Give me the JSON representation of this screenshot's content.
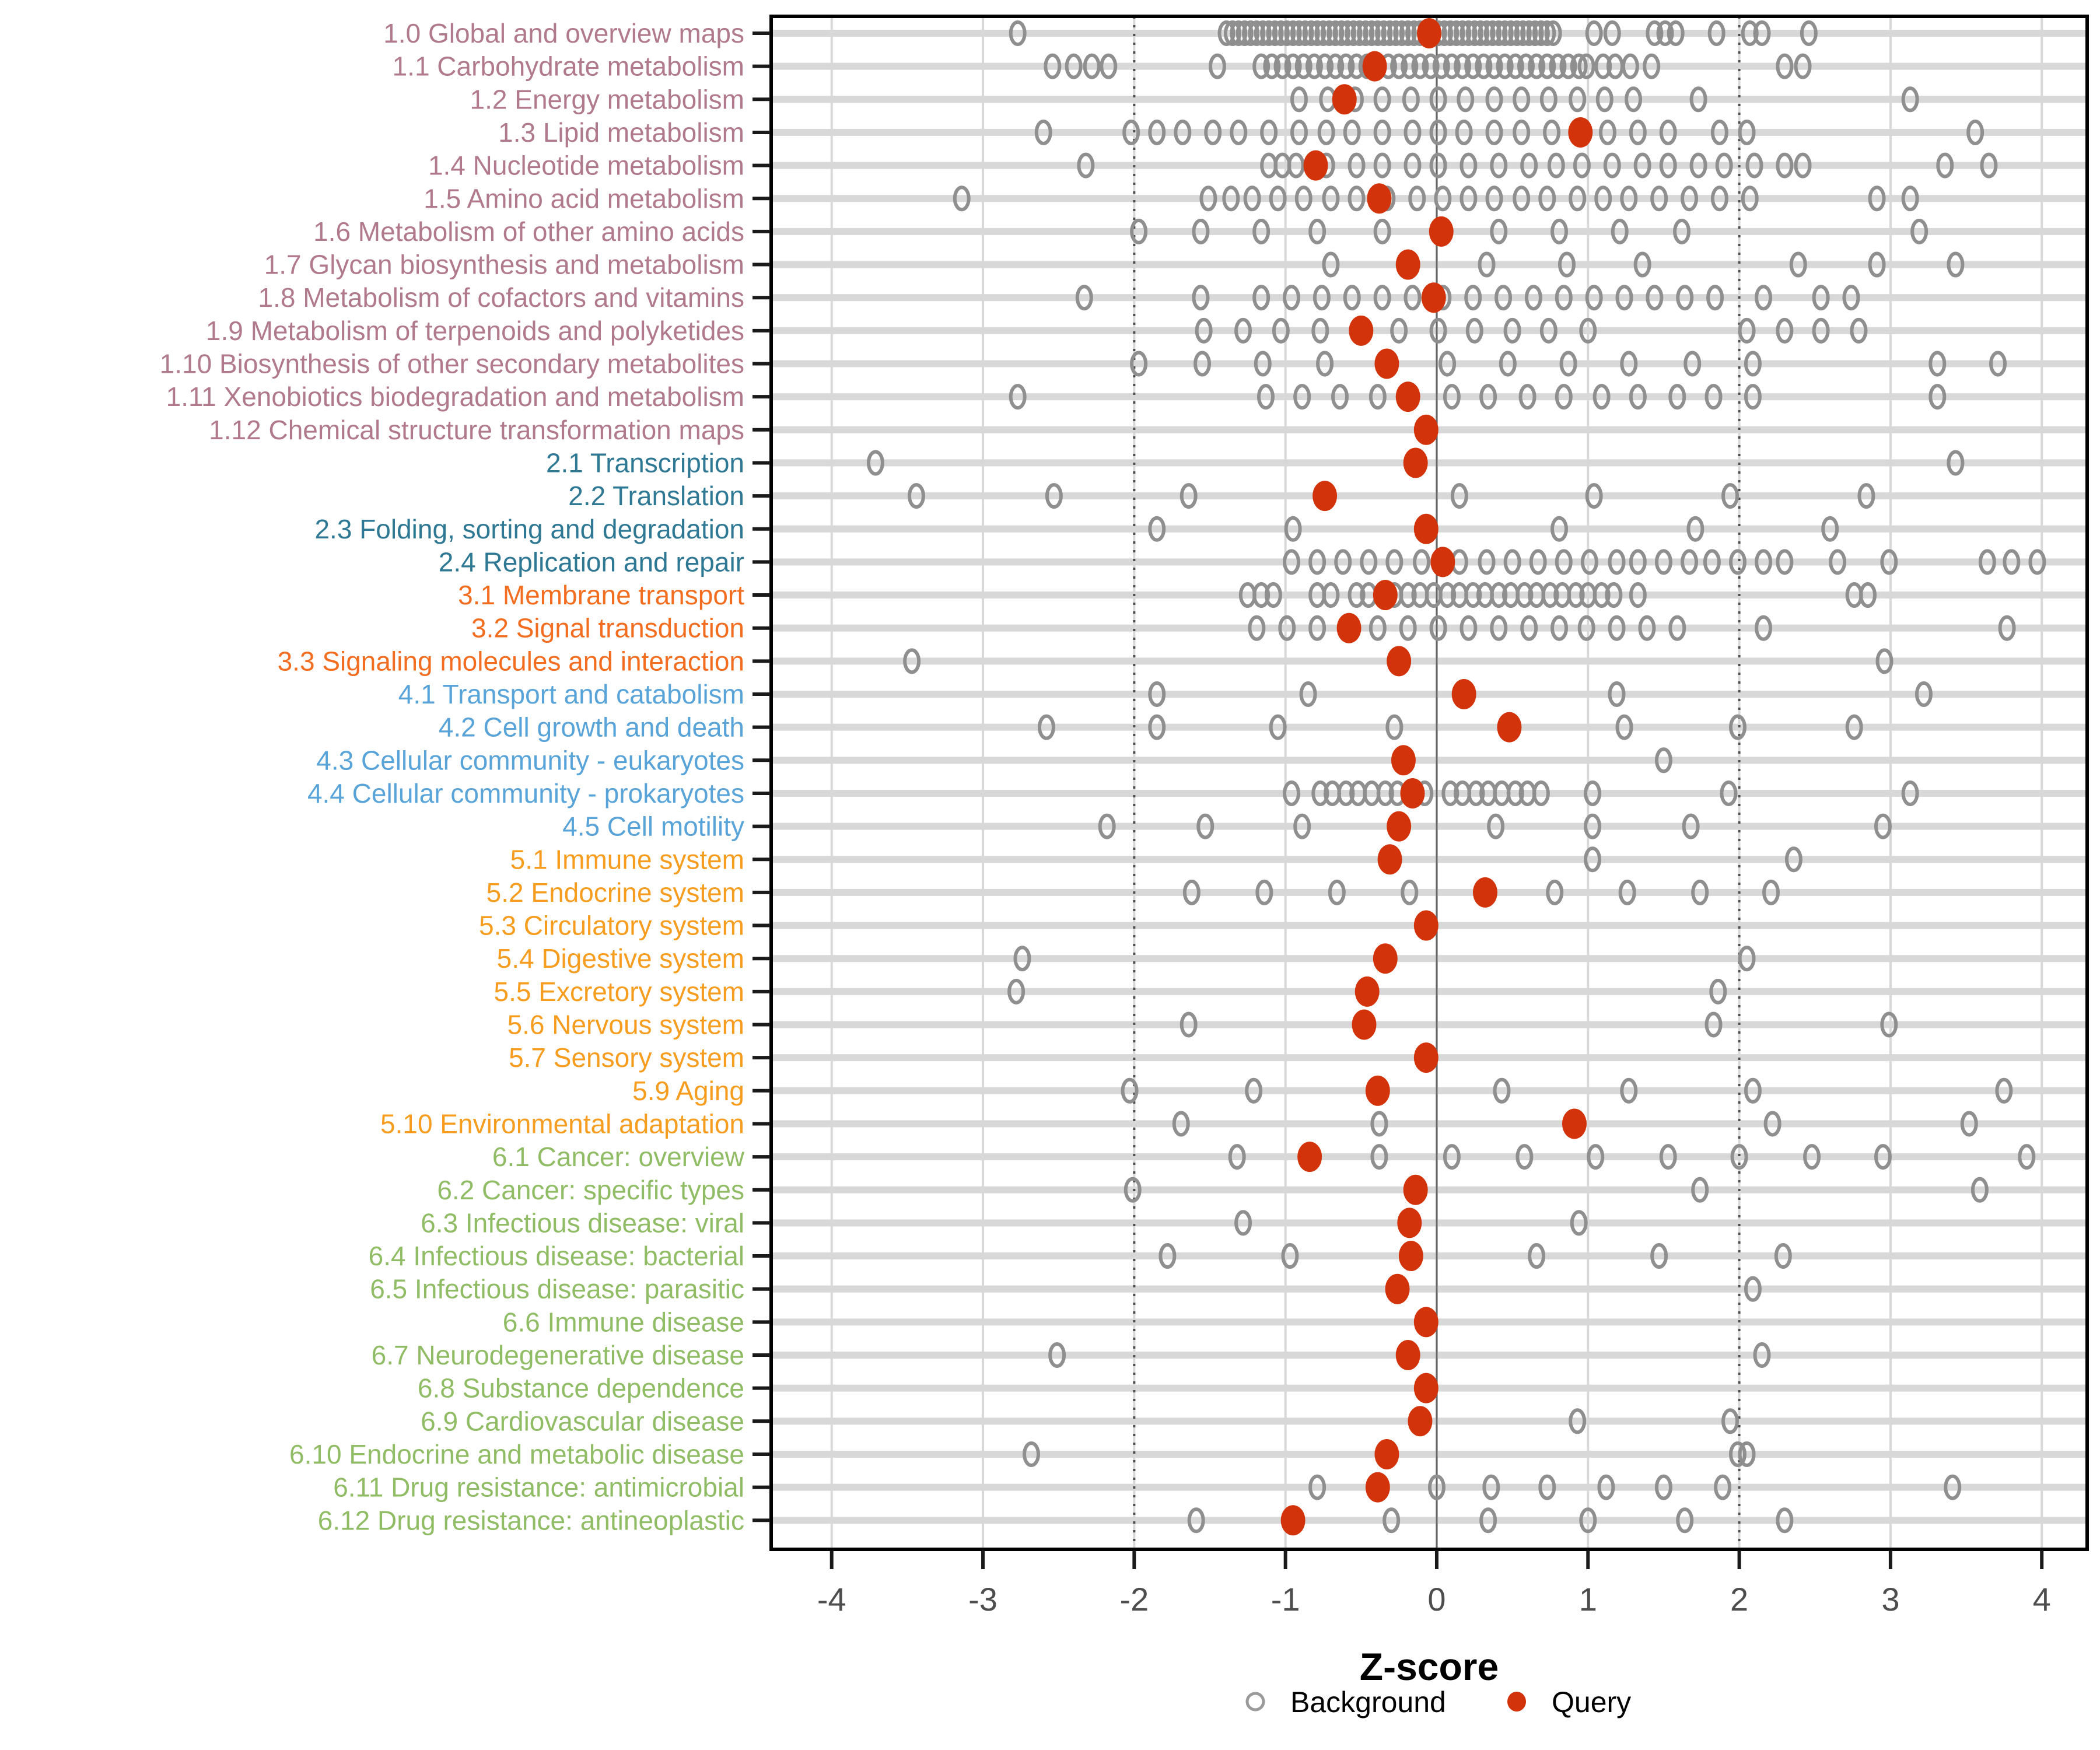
{
  "axis": {
    "xlabel": "Z-score",
    "ticks": [
      -4,
      -3,
      -2,
      -1,
      0,
      1,
      2,
      3,
      4
    ],
    "zero_line": 0,
    "dotted_lines": [
      -2,
      2
    ]
  },
  "legend": {
    "background_label": "Background",
    "query_label": "Query"
  },
  "colors": {
    "query": "#D2330A",
    "background_stroke": "#8F8F8F",
    "stripe": "#D8D8D8",
    "grid": "#D8D8D8",
    "zero_line": "#666666",
    "dotted_line": "#4D4D4D",
    "tick": "#1A1A1A",
    "groups": {
      "1": "#B0798C",
      "2": "#2E7894",
      "3": "#F26D1F",
      "4": "#58A3D8",
      "5": "#F69D1F",
      "6": "#8FBC64"
    }
  },
  "chart_data": {
    "type": "scatter",
    "title": "",
    "xlabel": "Z-score",
    "ylabel": "",
    "xlim": [
      -4.4,
      4.3
    ],
    "grid": true,
    "legend_position": "bottom",
    "series_names": [
      "Background",
      "Query"
    ],
    "categories": [
      {
        "label": "1.0 Global and overview maps",
        "group": "1",
        "query": -0.05,
        "background": [
          -2.77,
          -1.39,
          -1.35,
          -1.31,
          -1.27,
          -1.23,
          -1.19,
          -1.15,
          -1.11,
          -1.07,
          -1.03,
          -0.99,
          -0.95,
          -0.91,
          -0.87,
          -0.83,
          -0.79,
          -0.75,
          -0.71,
          -0.67,
          -0.63,
          -0.59,
          -0.55,
          -0.51,
          -0.47,
          -0.43,
          -0.39,
          -0.35,
          -0.31,
          -0.27,
          -0.23,
          -0.19,
          -0.15,
          -0.11,
          -0.07,
          -0.03,
          0.01,
          0.05,
          0.09,
          0.13,
          0.17,
          0.21,
          0.25,
          0.29,
          0.33,
          0.37,
          0.41,
          0.45,
          0.49,
          0.53,
          0.57,
          0.61,
          0.65,
          0.69,
          0.73,
          0.77,
          1.04,
          1.16,
          1.44,
          1.51,
          1.58,
          1.85,
          2.07,
          2.15,
          2.46
        ]
      },
      {
        "label": "1.1 Carbohydrate metabolism",
        "group": "1",
        "query": -0.41,
        "background": [
          -2.54,
          -2.4,
          -2.28,
          -2.17,
          -1.45,
          -1.16,
          -1.09,
          -1.02,
          -0.95,
          -0.88,
          -0.81,
          -0.74,
          -0.67,
          -0.6,
          -0.53,
          -0.46,
          -0.39,
          -0.32,
          -0.25,
          -0.18,
          -0.11,
          -0.04,
          0.03,
          0.1,
          0.17,
          0.24,
          0.31,
          0.38,
          0.45,
          0.52,
          0.59,
          0.66,
          0.73,
          0.8,
          0.87,
          0.94,
          0.99,
          1.1,
          1.18,
          1.28,
          1.42,
          2.3,
          2.42
        ]
      },
      {
        "label": "1.2 Energy metabolism",
        "group": "1",
        "query": -0.61,
        "background": [
          -0.91,
          -0.72,
          -0.54,
          -0.36,
          -0.17,
          0.01,
          0.19,
          0.38,
          0.56,
          0.74,
          0.93,
          1.11,
          1.3,
          1.73,
          3.13
        ]
      },
      {
        "label": "1.3 Lipid metabolism",
        "group": "1",
        "query": 0.95,
        "background": [
          -2.6,
          -2.02,
          -1.85,
          -1.68,
          -1.48,
          -1.31,
          -1.11,
          -0.91,
          -0.73,
          -0.56,
          -0.36,
          -0.16,
          0.01,
          0.18,
          0.38,
          0.56,
          0.76,
          1.13,
          1.33,
          1.53,
          1.87,
          2.05,
          3.56
        ]
      },
      {
        "label": "1.4 Nucleotide metabolism",
        "group": "1",
        "query": -0.8,
        "background": [
          -2.32,
          -1.11,
          -1.02,
          -0.93,
          -0.73,
          -0.53,
          -0.36,
          -0.16,
          0.01,
          0.21,
          0.41,
          0.61,
          0.79,
          0.96,
          1.16,
          1.36,
          1.53,
          1.73,
          1.9,
          2.1,
          2.3,
          2.42,
          3.36,
          3.65
        ]
      },
      {
        "label": "1.5 Amino acid metabolism",
        "group": "1",
        "query": -0.38,
        "background": [
          -3.14,
          -1.51,
          -1.36,
          -1.22,
          -1.05,
          -0.88,
          -0.7,
          -0.53,
          -0.33,
          -0.13,
          0.04,
          0.21,
          0.38,
          0.56,
          0.73,
          0.93,
          1.1,
          1.27,
          1.47,
          1.67,
          1.87,
          2.07,
          2.91,
          3.13
        ]
      },
      {
        "label": "1.6 Metabolism of other amino acids",
        "group": "1",
        "query": 0.03,
        "background": [
          -1.97,
          -1.56,
          -1.16,
          -0.79,
          -0.36,
          0.41,
          0.81,
          1.21,
          1.62,
          3.19
        ]
      },
      {
        "label": "1.7 Glycan biosynthesis and metabolism",
        "group": "1",
        "query": -0.19,
        "background": [
          -0.7,
          0.33,
          0.86,
          1.36,
          2.39,
          2.91,
          3.43
        ]
      },
      {
        "label": "1.8 Metabolism of cofactors and vitamins",
        "group": "1",
        "query": -0.02,
        "background": [
          -2.33,
          -1.56,
          -1.16,
          -0.96,
          -0.76,
          -0.56,
          -0.36,
          -0.16,
          0.04,
          0.24,
          0.44,
          0.64,
          0.84,
          1.04,
          1.24,
          1.44,
          1.64,
          1.84,
          2.16,
          2.54,
          2.74
        ]
      },
      {
        "label": "1.9 Metabolism of terpenoids and polyketides",
        "group": "1",
        "query": -0.5,
        "background": [
          -1.54,
          -1.28,
          -1.03,
          -0.77,
          -0.25,
          0.01,
          0.25,
          0.5,
          0.74,
          1.0,
          2.05,
          2.3,
          2.54,
          2.79
        ]
      },
      {
        "label": "1.10 Biosynthesis of other secondary metabolites",
        "group": "1",
        "query": -0.33,
        "background": [
          -1.97,
          -1.55,
          -1.15,
          -0.74,
          0.07,
          0.47,
          0.87,
          1.27,
          1.69,
          2.09,
          3.31,
          3.71
        ]
      },
      {
        "label": "1.11 Xenobiotics biodegradation and metabolism",
        "group": "1",
        "query": -0.19,
        "background": [
          -2.77,
          -1.13,
          -0.89,
          -0.64,
          -0.39,
          0.1,
          0.34,
          0.6,
          0.84,
          1.09,
          1.33,
          1.59,
          1.83,
          2.09,
          3.31
        ]
      },
      {
        "label": "1.12 Chemical structure transformation maps",
        "group": "1",
        "query": -0.07,
        "background": []
      },
      {
        "label": "2.1 Transcription",
        "group": "2",
        "query": -0.14,
        "background": [
          -3.71,
          3.43
        ]
      },
      {
        "label": "2.2 Translation",
        "group": "2",
        "query": -0.74,
        "background": [
          -3.44,
          -2.53,
          -1.64,
          0.15,
          1.04,
          1.94,
          2.84
        ]
      },
      {
        "label": "2.3 Folding, sorting and degradation",
        "group": "2",
        "query": -0.07,
        "background": [
          -1.85,
          -0.95,
          0.81,
          1.71,
          2.6
        ]
      },
      {
        "label": "2.4 Replication and repair",
        "group": "2",
        "query": 0.04,
        "background": [
          -0.96,
          -0.79,
          -0.62,
          -0.45,
          -0.28,
          -0.1,
          0.15,
          0.33,
          0.5,
          0.67,
          0.84,
          1.01,
          1.19,
          1.33,
          1.5,
          1.67,
          1.82,
          1.99,
          2.16,
          2.3,
          2.65,
          2.99,
          3.64,
          3.8,
          3.97
        ]
      },
      {
        "label": "3.1 Membrane transport",
        "group": "3",
        "query": -0.34,
        "background": [
          -1.25,
          -1.16,
          -1.08,
          -0.79,
          -0.7,
          -0.53,
          -0.45,
          -0.36,
          -0.28,
          -0.19,
          -0.11,
          -0.02,
          0.07,
          0.15,
          0.24,
          0.32,
          0.41,
          0.49,
          0.58,
          0.66,
          0.75,
          0.83,
          0.92,
          1.0,
          1.09,
          1.17,
          1.33,
          2.76,
          2.85
        ]
      },
      {
        "label": "3.2 Signal transduction",
        "group": "3",
        "query": -0.58,
        "background": [
          -1.19,
          -0.99,
          -0.79,
          -0.39,
          -0.19,
          0.01,
          0.21,
          0.41,
          0.61,
          0.81,
          0.99,
          1.19,
          1.39,
          1.59,
          2.16,
          3.77
        ]
      },
      {
        "label": "3.3 Signaling molecules and interaction",
        "group": "3",
        "query": -0.25,
        "background": [
          -3.47,
          2.96
        ]
      },
      {
        "label": "4.1 Transport and catabolism",
        "group": "4",
        "query": 0.18,
        "background": [
          -1.85,
          -0.85,
          1.19,
          3.22
        ]
      },
      {
        "label": "4.2 Cell growth and death",
        "group": "4",
        "query": 0.48,
        "background": [
          -2.58,
          -1.85,
          -1.05,
          -0.28,
          1.24,
          1.99,
          2.76
        ]
      },
      {
        "label": "4.3 Cellular community - eukaryotes",
        "group": "4",
        "query": -0.22,
        "background": [
          1.5
        ]
      },
      {
        "label": "4.4 Cellular community - prokaryotes",
        "group": "4",
        "query": -0.16,
        "background": [
          -0.96,
          -0.77,
          -0.69,
          -0.6,
          -0.52,
          -0.43,
          -0.34,
          -0.26,
          -0.08,
          0.09,
          0.17,
          0.26,
          0.34,
          0.43,
          0.52,
          0.6,
          0.69,
          1.03,
          1.93,
          3.13
        ]
      },
      {
        "label": "4.5 Cell motility",
        "group": "4",
        "query": -0.25,
        "background": [
          -2.18,
          -1.53,
          -0.89,
          0.39,
          1.03,
          1.68,
          2.95
        ]
      },
      {
        "label": "5.1 Immune system",
        "group": "5",
        "query": -0.31,
        "background": [
          1.03,
          2.36
        ]
      },
      {
        "label": "5.2 Endocrine system",
        "group": "5",
        "query": 0.32,
        "background": [
          -1.62,
          -1.14,
          -0.66,
          -0.18,
          0.78,
          1.26,
          1.74,
          2.21
        ]
      },
      {
        "label": "5.3 Circulatory system",
        "group": "5",
        "query": -0.07,
        "background": []
      },
      {
        "label": "5.4 Digestive system",
        "group": "5",
        "query": -0.34,
        "background": [
          -2.74,
          2.05
        ]
      },
      {
        "label": "5.5 Excretory system",
        "group": "5",
        "query": -0.46,
        "background": [
          -2.78,
          1.86
        ]
      },
      {
        "label": "5.6 Nervous system",
        "group": "5",
        "query": -0.48,
        "background": [
          -1.64,
          1.83,
          2.99
        ]
      },
      {
        "label": "5.7 Sensory system",
        "group": "5",
        "query": -0.07,
        "background": []
      },
      {
        "label": "5.9 Aging",
        "group": "5",
        "query": -0.39,
        "background": [
          -2.03,
          -1.21,
          0.43,
          1.27,
          2.09,
          3.75
        ]
      },
      {
        "label": "5.10 Environmental adaptation",
        "group": "5",
        "query": 0.91,
        "background": [
          -1.69,
          -0.38,
          2.22,
          3.52
        ]
      },
      {
        "label": "6.1 Cancer: overview",
        "group": "6",
        "query": -0.84,
        "background": [
          -1.32,
          -0.38,
          0.1,
          0.58,
          1.05,
          1.53,
          2.0,
          2.48,
          2.95,
          3.9
        ]
      },
      {
        "label": "6.2 Cancer: specific types",
        "group": "6",
        "query": -0.14,
        "background": [
          -2.01,
          1.74,
          3.59
        ]
      },
      {
        "label": "6.3 Infectious disease: viral",
        "group": "6",
        "query": -0.18,
        "background": [
          -1.28,
          0.94
        ]
      },
      {
        "label": "6.4 Infectious disease: bacterial",
        "group": "6",
        "query": -0.17,
        "background": [
          -1.78,
          -0.97,
          0.66,
          1.47,
          2.29
        ]
      },
      {
        "label": "6.5 Infectious disease: parasitic",
        "group": "6",
        "query": -0.26,
        "background": [
          2.09
        ]
      },
      {
        "label": "6.6 Immune disease",
        "group": "6",
        "query": -0.07,
        "background": []
      },
      {
        "label": "6.7 Neurodegenerative disease",
        "group": "6",
        "query": -0.19,
        "background": [
          -2.51,
          2.15
        ]
      },
      {
        "label": "6.8 Substance dependence",
        "group": "6",
        "query": -0.07,
        "background": []
      },
      {
        "label": "6.9 Cardiovascular disease",
        "group": "6",
        "query": -0.11,
        "background": [
          0.93,
          1.94
        ]
      },
      {
        "label": "6.10 Endocrine and metabolic disease",
        "group": "6",
        "query": -0.33,
        "background": [
          -2.68,
          1.99,
          2.05
        ]
      },
      {
        "label": "6.11 Drug resistance: antimicrobial",
        "group": "6",
        "query": -0.39,
        "background": [
          -0.79,
          0.0,
          0.36,
          0.73,
          1.12,
          1.5,
          1.89,
          3.41
        ]
      },
      {
        "label": "6.12 Drug resistance: antineoplastic",
        "group": "6",
        "query": -0.95,
        "background": [
          -1.59,
          -0.3,
          0.34,
          1.0,
          1.64,
          2.3
        ]
      }
    ]
  }
}
